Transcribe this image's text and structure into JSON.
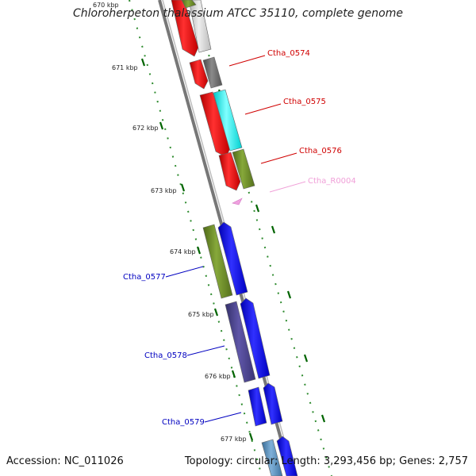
{
  "title": "Chloroherpeton thalassium ATCC 35110, complete genome",
  "footer": {
    "accession": "Accession: NC_011026",
    "summary": "Topology: circular; Length: 3,293,456 bp; Genes: 2,757"
  },
  "kbp_labels": [
    "670 kbp",
    "671 kbp",
    "672 kbp",
    "673 kbp",
    "674 kbp",
    "675 kbp",
    "676 kbp",
    "677 kbp"
  ],
  "gene_labels": {
    "ctha_0574": "Ctha_0574",
    "ctha_0575": "Ctha_0575",
    "ctha_0576": "Ctha_0576",
    "ctha_r0004": "Ctha_R0004",
    "ctha_0577": "Ctha_0577",
    "ctha_0578": "Ctha_0578",
    "ctha_0579": "Ctha_0579"
  },
  "colors": {
    "forward_strand_red": "#ff0000",
    "reverse_strand_blue": "#0000ff",
    "olive": "#6b8e23",
    "cyan": "#00ffff",
    "dark_slate": "#483d8b",
    "steel_blue": "#4682b4",
    "gray": "#696969",
    "light_gray": "#c8c8c8",
    "pink": "#ee82ee",
    "tick_green": "#006400",
    "backbone": "#808080"
  }
}
